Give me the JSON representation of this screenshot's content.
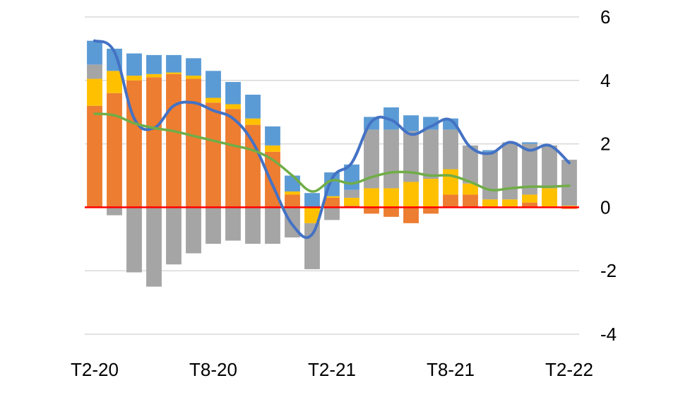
{
  "chart_data": {
    "type": "bar",
    "stacked": true,
    "title": "",
    "xlabel": "",
    "ylabel": "",
    "ylim": [
      -4,
      6
    ],
    "y_ticks": [
      6,
      4,
      2,
      0,
      -2,
      -4
    ],
    "y_axis_side": "right",
    "grid": "horizontal",
    "legend": "none",
    "categories": [
      "T2-20",
      "T3-20",
      "T4-20",
      "T5-20",
      "T6-20",
      "T7-20",
      "T8-20",
      "T9-20",
      "T10-20",
      "T11-20",
      "T12-20",
      "T1-21",
      "T2-21",
      "T3-21",
      "T4-21",
      "T5-21",
      "T6-21",
      "T7-21",
      "T8-21",
      "T9-21",
      "T10-21",
      "T11-21",
      "T12-21",
      "T1-22",
      "T2-22"
    ],
    "x_tick_labels": [
      {
        "index": 0,
        "label": "T2-20"
      },
      {
        "index": 6,
        "label": "T8-20"
      },
      {
        "index": 12,
        "label": "T2-21"
      },
      {
        "index": 18,
        "label": "T8-21"
      },
      {
        "index": 24,
        "label": "T2-22"
      }
    ],
    "series": [
      {
        "color": "#ED7D31",
        "kind": "bar",
        "values": [
          3.2,
          3.6,
          4.0,
          4.1,
          4.2,
          4.05,
          3.3,
          3.1,
          2.6,
          1.75,
          0.4,
          0.0,
          0.3,
          0.05,
          -0.2,
          -0.3,
          -0.5,
          -0.2,
          0.4,
          0.4,
          0.0,
          0.0,
          0.15,
          0.0,
          -0.05
        ]
      },
      {
        "color": "#FFC000",
        "kind": "bar",
        "values": [
          0.85,
          0.7,
          0.15,
          0.1,
          0.05,
          0.1,
          0.15,
          0.15,
          0.2,
          0.2,
          0.1,
          -0.5,
          0.05,
          0.25,
          0.6,
          0.6,
          0.8,
          0.9,
          0.8,
          0.35,
          0.25,
          0.25,
          0.25,
          0.6,
          0.05
        ]
      },
      {
        "color": "#A5A5A5",
        "kind": "bar",
        "values": [
          0.45,
          -0.25,
          -2.05,
          -2.5,
          -1.8,
          -1.45,
          -1.15,
          -1.05,
          -1.15,
          -1.15,
          -0.95,
          -1.45,
          -0.4,
          0.25,
          1.85,
          1.85,
          1.6,
          1.55,
          1.25,
          1.2,
          1.5,
          1.8,
          1.6,
          1.35,
          1.45
        ]
      },
      {
        "color": "#5B9BD5",
        "kind": "bar",
        "values": [
          0.75,
          0.7,
          0.7,
          0.6,
          0.55,
          0.55,
          0.85,
          0.7,
          0.75,
          0.6,
          0.5,
          0.45,
          0.75,
          0.8,
          0.4,
          0.7,
          0.5,
          0.4,
          0.35,
          0.0,
          0.05,
          0.0,
          0.05,
          0.0,
          0.0
        ]
      },
      {
        "color": "#4472C4",
        "kind": "line",
        "values": [
          5.25,
          4.9,
          2.8,
          2.5,
          3.2,
          3.3,
          3.05,
          2.8,
          2.05,
          0.7,
          -0.55,
          -0.85,
          0.9,
          1.4,
          2.7,
          2.75,
          2.3,
          2.55,
          2.75,
          1.9,
          1.7,
          2.05,
          1.8,
          1.95,
          1.4
        ]
      },
      {
        "color": "#70AD47",
        "kind": "line",
        "values": [
          2.95,
          2.9,
          2.65,
          2.5,
          2.4,
          2.25,
          2.1,
          1.95,
          1.8,
          1.5,
          1.0,
          0.5,
          0.85,
          0.75,
          0.95,
          1.1,
          1.1,
          1.0,
          1.0,
          0.8,
          0.55,
          0.6,
          0.65,
          0.65,
          0.68
        ]
      }
    ],
    "zero_line_color": "#FF0000"
  }
}
